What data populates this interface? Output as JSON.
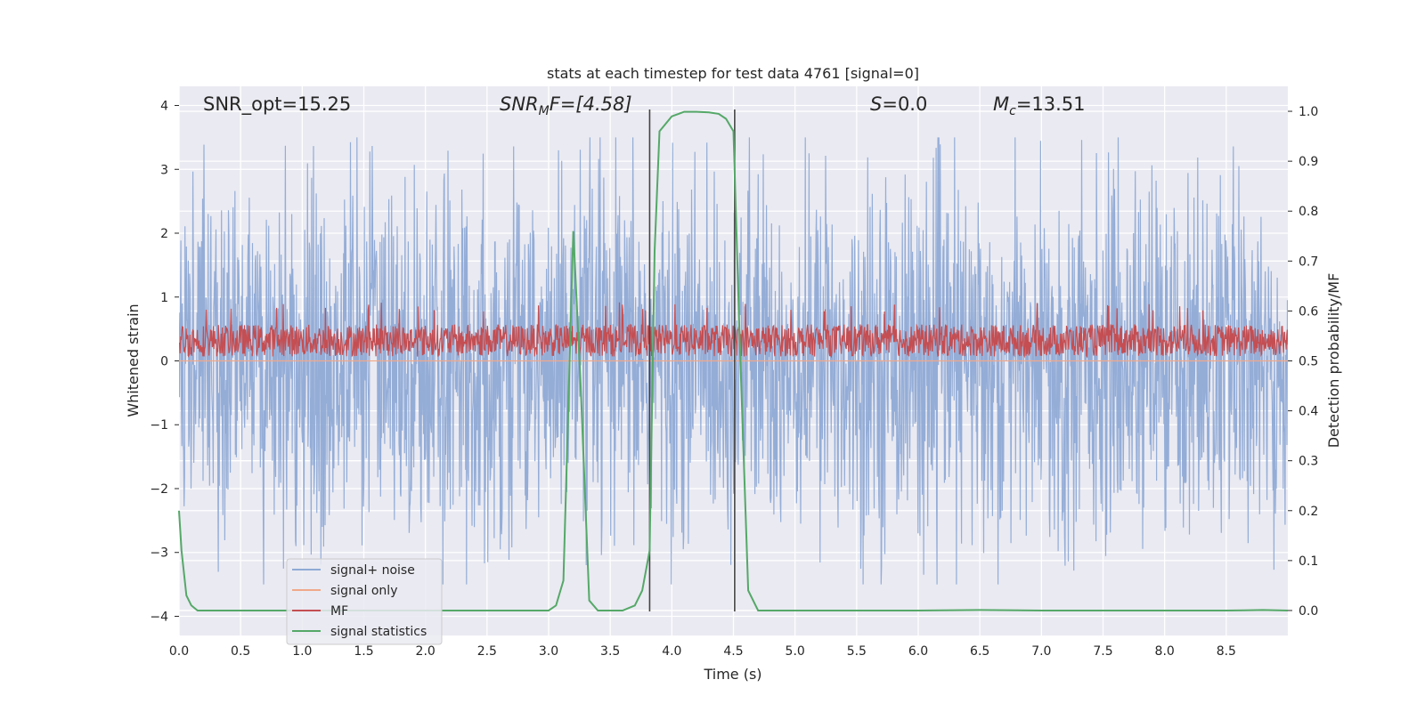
{
  "chart_data": {
    "type": "line",
    "title": "stats at each timestep for test data 4761 [signal=0]",
    "xlabel": "Time (s)",
    "ylabel": "Whitened strain",
    "y2label": "Detection probability/MF",
    "xlim": [
      0.0,
      9.0
    ],
    "ylim": [
      -4.3,
      4.3
    ],
    "y2lim": [
      -0.05,
      1.05
    ],
    "grid": true,
    "x_ticks": [
      0.0,
      0.5,
      1.0,
      1.5,
      2.0,
      2.5,
      3.0,
      3.5,
      4.0,
      4.5,
      5.0,
      5.5,
      6.0,
      6.5,
      7.0,
      7.5,
      8.0,
      8.5
    ],
    "x_tick_labels": [
      "0.0",
      "0.5",
      "1.0",
      "1.5",
      "2.0",
      "2.5",
      "3.0",
      "3.5",
      "4.0",
      "4.5",
      "5.0",
      "5.5",
      "6.0",
      "6.5",
      "7.0",
      "7.5",
      "8.0",
      "8.5"
    ],
    "y_ticks": [
      -4,
      -3,
      -2,
      -1,
      0,
      1,
      2,
      3,
      4
    ],
    "y_tick_labels": [
      "−4",
      "−3",
      "−2",
      "−1",
      "0",
      "1",
      "2",
      "3",
      "4"
    ],
    "y2_ticks": [
      0.0,
      0.1,
      0.2,
      0.3,
      0.4,
      0.5,
      0.6,
      0.7,
      0.8,
      0.9,
      1.0
    ],
    "y2_tick_labels": [
      "0.0",
      "0.1",
      "0.2",
      "0.3",
      "0.4",
      "0.5",
      "0.6",
      "0.7",
      "0.8",
      "0.9",
      "1.0"
    ],
    "annotations": {
      "snr_opt": "SNR_opt=15.25",
      "snr_mf_main": "SNR",
      "snr_mf_sub": "M",
      "snr_mf_rest": "F=[4.58]",
      "s_main": "S",
      "s_rest": "=0.0",
      "mc_main": "M",
      "mc_sub": "c",
      "mc_rest": "=13.51"
    },
    "vertical_lines": [
      3.82,
      4.51
    ],
    "series": [
      {
        "name": "signal+ noise",
        "axis": "left",
        "color": "#8faad5",
        "description": "whitened noise, roughly uniform amplitude about ±2.2 with spikes to about ±3.5",
        "amplitude": 2.2,
        "peak": 3.5
      },
      {
        "name": "signal only",
        "axis": "left",
        "color": "#f0a88a",
        "values_constant": 0.0
      },
      {
        "name": "MF",
        "axis": "left",
        "color": "#c44e52",
        "description": "matched filter output, band between about 0.0 and 0.7",
        "center": 0.32,
        "amplitude": 0.28
      },
      {
        "name": "signal statistics",
        "axis": "right",
        "color": "#55a868",
        "x": [
          0.0,
          0.02,
          0.06,
          0.1,
          0.15,
          0.2,
          0.3,
          0.5,
          1.0,
          2.0,
          3.0,
          3.06,
          3.12,
          3.2,
          3.26,
          3.33,
          3.4,
          3.5,
          3.6,
          3.7,
          3.76,
          3.82,
          3.86,
          3.9,
          4.0,
          4.1,
          4.2,
          4.3,
          4.38,
          4.44,
          4.5,
          4.55,
          4.62,
          4.7,
          5.0,
          6.0,
          6.5,
          7.0,
          8.0,
          8.5,
          8.8,
          9.0
        ],
        "values": [
          0.2,
          0.12,
          0.03,
          0.01,
          0.0,
          0.0,
          0.0,
          0.0,
          0.0,
          0.0,
          0.0,
          0.01,
          0.06,
          0.76,
          0.45,
          0.02,
          0.0,
          0.0,
          0.0,
          0.01,
          0.04,
          0.12,
          0.72,
          0.96,
          0.99,
          0.999,
          0.999,
          0.998,
          0.995,
          0.985,
          0.96,
          0.55,
          0.04,
          0.0,
          0.0,
          0.0,
          0.001,
          0.0,
          0.0,
          0.0,
          0.001,
          0.0
        ]
      }
    ],
    "legend": {
      "position": "lower-left",
      "entries": [
        {
          "label": "signal+ noise",
          "color": "#8faad5"
        },
        {
          "label": "signal only",
          "color": "#f0a88a"
        },
        {
          "label": "MF",
          "color": "#c44e52"
        },
        {
          "label": "signal statistics",
          "color": "#55a868"
        }
      ]
    }
  },
  "colors": {
    "plot_background": "#eaeaf2",
    "grid": "#ffffff",
    "text": "#262626",
    "vline": "#444444"
  }
}
